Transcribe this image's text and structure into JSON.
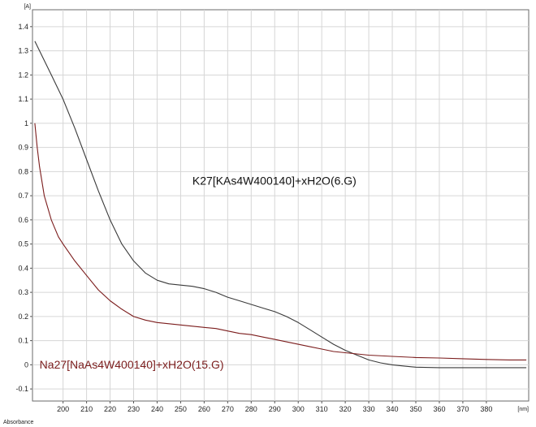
{
  "chart_data": {
    "type": "line",
    "x_unit_label": "[nm]",
    "y_unit_label": "[A]",
    "y_axis_name": "Absorbance",
    "xlim": [
      187,
      398
    ],
    "ylim": [
      -0.15,
      1.47
    ],
    "x_ticks": [
      200,
      210,
      220,
      230,
      240,
      250,
      260,
      270,
      280,
      290,
      300,
      310,
      320,
      330,
      340,
      350,
      360,
      370,
      380
    ],
    "y_ticks": [
      -0.1,
      0,
      0.1,
      0.2,
      0.3,
      0.4,
      0.5,
      0.6,
      0.7,
      0.8,
      0.9,
      1,
      1.1,
      1.2,
      1.3,
      1.4
    ],
    "grid": true,
    "series": [
      {
        "name": "K27[KAs4W40O140]+xH2O(6.G)",
        "color": "#3a3a3a",
        "x": [
          188,
          190,
          195,
          200,
          205,
          210,
          215,
          220,
          225,
          230,
          235,
          240,
          245,
          250,
          255,
          260,
          265,
          270,
          275,
          280,
          285,
          290,
          295,
          300,
          305,
          310,
          315,
          320,
          325,
          330,
          335,
          340,
          345,
          350,
          360,
          370,
          380,
          390,
          397
        ],
        "y": [
          1.34,
          1.3,
          1.2,
          1.1,
          0.98,
          0.85,
          0.72,
          0.6,
          0.5,
          0.43,
          0.38,
          0.35,
          0.335,
          0.33,
          0.325,
          0.315,
          0.3,
          0.28,
          0.265,
          0.25,
          0.235,
          0.22,
          0.2,
          0.175,
          0.145,
          0.115,
          0.085,
          0.06,
          0.04,
          0.02,
          0.008,
          0.0,
          -0.005,
          -0.01,
          -0.012,
          -0.012,
          -0.012,
          -0.012,
          -0.012
        ]
      },
      {
        "name": "Na27[NaAs4W40O140]+xH2O(15.G)",
        "color": "#7b1c1c",
        "x": [
          188,
          189,
          190,
          192,
          195,
          198,
          200,
          205,
          210,
          215,
          220,
          225,
          230,
          235,
          240,
          245,
          250,
          255,
          260,
          265,
          270,
          275,
          280,
          285,
          290,
          295,
          300,
          305,
          310,
          315,
          320,
          325,
          330,
          340,
          350,
          360,
          370,
          380,
          390,
          397
        ],
        "y": [
          1.0,
          0.9,
          0.82,
          0.7,
          0.6,
          0.53,
          0.5,
          0.43,
          0.37,
          0.31,
          0.265,
          0.23,
          0.2,
          0.185,
          0.175,
          0.17,
          0.165,
          0.16,
          0.155,
          0.15,
          0.14,
          0.13,
          0.125,
          0.115,
          0.105,
          0.095,
          0.085,
          0.075,
          0.065,
          0.055,
          0.05,
          0.045,
          0.04,
          0.035,
          0.03,
          0.028,
          0.025,
          0.022,
          0.02,
          0.02
        ]
      }
    ],
    "annotations": [
      {
        "text": "K27[KAs4W400140]+xH2O(6.G)",
        "x": 255,
        "y": 0.745,
        "color": "#111111"
      },
      {
        "text": "Na27[NaAs4W400140]+xH2O(15.G)",
        "x": 190,
        "y": -0.015,
        "color": "#7b1c1c"
      }
    ]
  }
}
